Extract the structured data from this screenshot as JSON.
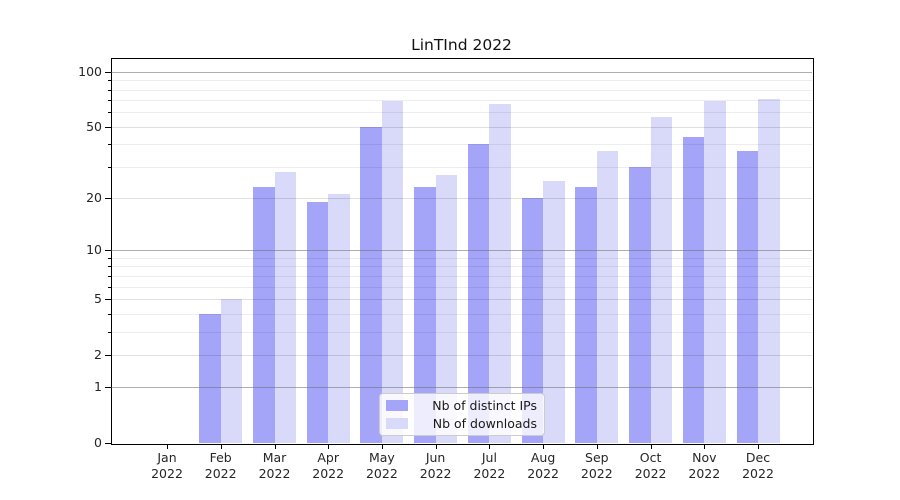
{
  "chart_data": {
    "type": "bar",
    "title": "LinTInd 2022",
    "categories": [
      "Jan 2022",
      "Feb 2022",
      "Mar 2022",
      "Apr 2022",
      "May 2022",
      "Jun 2022",
      "Jul 2022",
      "Aug 2022",
      "Sep 2022",
      "Oct 2022",
      "Nov 2022",
      "Dec 2022"
    ],
    "series": [
      {
        "name": "Nb of distinct IPs",
        "color": "#a4a4f8",
        "values": [
          0,
          4,
          23,
          19,
          50,
          23,
          40,
          20,
          23,
          30,
          44,
          37
        ]
      },
      {
        "name": "Nb of downloads",
        "color": "#d9d9fa",
        "values": [
          0,
          5,
          28,
          21,
          69,
          27,
          67,
          25,
          37,
          57,
          69,
          71
        ]
      }
    ],
    "xlabel": "",
    "ylabel": "",
    "yscale": "log1p",
    "ylim": [
      0,
      119
    ],
    "yticks": [
      0,
      1,
      2,
      5,
      10,
      20,
      50,
      100
    ],
    "yticks_decade": [
      1,
      10,
      100
    ],
    "yticks_minor": [
      3,
      4,
      6,
      7,
      8,
      9,
      30,
      40,
      60,
      70,
      80,
      90
    ],
    "grid": "on",
    "legend_position": "lower center"
  },
  "colors": {
    "bar_ips": "#a4a4f8",
    "bar_downloads": "#d9d9fa",
    "grid_decade": "rgba(110,110,110,0.55)",
    "grid_labeled": "rgba(0,0,0,0.12)",
    "grid_minor": "rgba(0,0,0,0.07)",
    "axis_line": "#000000",
    "text": "#262626",
    "legend_border": "#cccccc",
    "legend_background": "rgba(255,255,255,0.8)"
  }
}
